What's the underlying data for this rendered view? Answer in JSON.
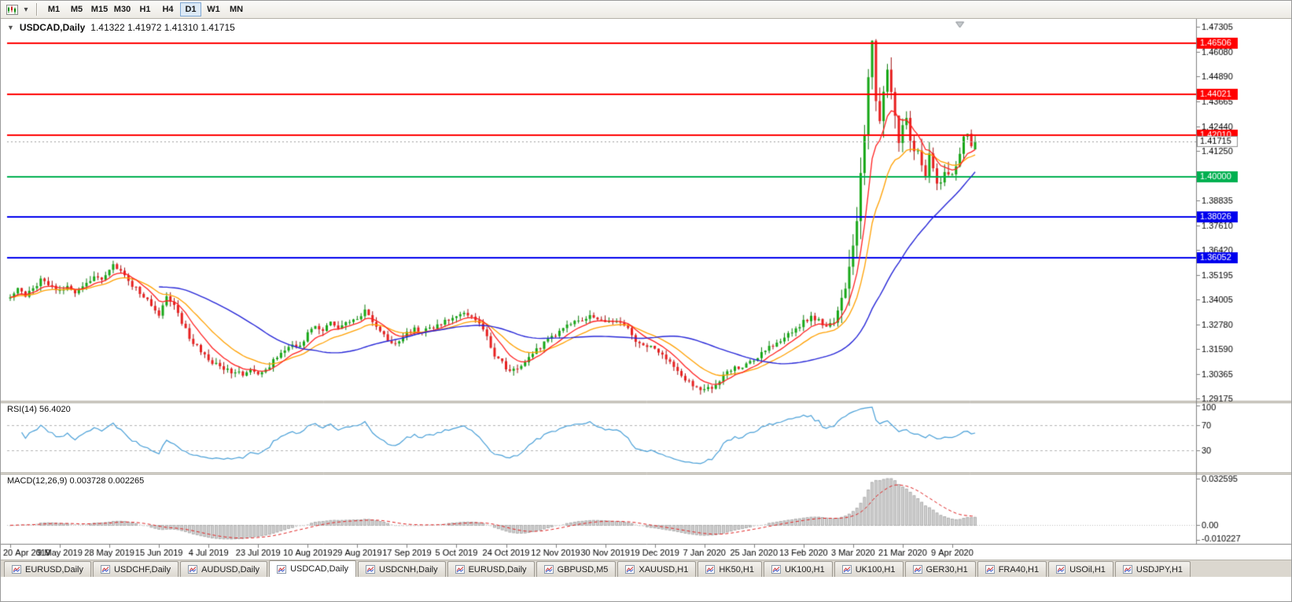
{
  "toolbar": {
    "timeframes": [
      "M1",
      "M5",
      "M15",
      "M30",
      "H1",
      "H4",
      "D1",
      "W1",
      "MN"
    ],
    "active_timeframe": "D1"
  },
  "chart": {
    "collapse_arrow": "▼",
    "title": "USDCAD,Daily",
    "ohlc_text": "1.41322 1.41972 1.41310 1.41715"
  },
  "chart_data": {
    "type": "candlestick",
    "symbol": "USDCAD",
    "period": "Daily",
    "num_candles": 254,
    "last_candle": {
      "open": 1.41322,
      "high": 1.41972,
      "low": 1.4131,
      "close": 1.41715
    },
    "current_price": 1.41715,
    "current_price_label": "1.41715",
    "price_axis": {
      "top": 1.47688,
      "bottom": 1.29059,
      "ticks": [
        1.47305,
        1.4608,
        1.4489,
        1.43665,
        1.4244,
        1.4125,
        1.4006,
        1.38835,
        1.3761,
        1.3642,
        1.35195,
        1.34005,
        1.3278,
        1.3159,
        1.30365,
        1.29175
      ]
    },
    "horizontal_lines": [
      {
        "price": 1.46506,
        "label": "1.46506",
        "color": "#ff0000"
      },
      {
        "price": 1.44021,
        "label": "1.44021",
        "color": "#ff0000"
      },
      {
        "price": 1.4201,
        "label": "1.42010",
        "color": "#ff0000"
      },
      {
        "price": 1.4,
        "label": "1.40000",
        "color": "#00b050"
      },
      {
        "price": 1.38026,
        "label": "1.38026",
        "color": "#0000ee"
      },
      {
        "price": 1.36052,
        "label": "1.36052",
        "color": "#0000ee"
      }
    ],
    "moving_averages": [
      {
        "type": "ema",
        "period": 8,
        "color": "#ff2020"
      },
      {
        "type": "ema",
        "period": 17,
        "color": "#ffa000"
      },
      {
        "type": "sma",
        "period": 40,
        "color": "#2828d8"
      }
    ],
    "candle_colors": {
      "up_fill": "#18a818",
      "up_stroke": "#0c7a0c",
      "down_fill": "#e82020",
      "down_stroke": "#a01010"
    },
    "x_labels": [
      "20 Apr 2019",
      "9 May 2019",
      "28 May 2019",
      "15 Jun 2019",
      "4 Jul 2019",
      "23 Jul 2019",
      "10 Aug 2019",
      "29 Aug 2019",
      "17 Sep 2019",
      "5 Oct 2019",
      "24 Oct 2019",
      "12 Nov 2019",
      "30 Nov 2019",
      "19 Dec 2019",
      "7 Jan 2020",
      "25 Jan 2020",
      "13 Feb 2020",
      "3 Mar 2020",
      "21 Mar 2020",
      "9 Apr 2020"
    ],
    "x_label_indices": [
      0,
      13,
      26,
      39,
      52,
      65,
      78,
      91,
      104,
      117,
      130,
      143,
      156,
      169,
      182,
      195,
      208,
      221,
      234,
      247
    ],
    "close_anchors": [
      [
        0,
        1.3405
      ],
      [
        2,
        1.3448
      ],
      [
        4,
        1.3412
      ],
      [
        6,
        1.3452
      ],
      [
        8,
        1.3498
      ],
      [
        10,
        1.3465
      ],
      [
        13,
        1.3442
      ],
      [
        15,
        1.3468
      ],
      [
        17,
        1.3428
      ],
      [
        19,
        1.3458
      ],
      [
        22,
        1.3512
      ],
      [
        24,
        1.3498
      ],
      [
        26,
        1.3552
      ],
      [
        27,
        1.3568
      ],
      [
        29,
        1.3532
      ],
      [
        31,
        1.3492
      ],
      [
        33,
        1.3452
      ],
      [
        35,
        1.3418
      ],
      [
        37,
        1.3372
      ],
      [
        39,
        1.3332
      ],
      [
        41,
        1.3408
      ],
      [
        43,
        1.3368
      ],
      [
        45,
        1.3292
      ],
      [
        47,
        1.3212
      ],
      [
        49,
        1.3168
      ],
      [
        52,
        1.3112
      ],
      [
        55,
        1.3065
      ],
      [
        58,
        1.3048
      ],
      [
        61,
        1.3035
      ],
      [
        63,
        1.3058
      ],
      [
        65,
        1.3028
      ],
      [
        68,
        1.3078
      ],
      [
        71,
        1.3142
      ],
      [
        74,
        1.3188
      ],
      [
        76,
        1.3165
      ],
      [
        78,
        1.3232
      ],
      [
        80,
        1.3268
      ],
      [
        82,
        1.3245
      ],
      [
        84,
        1.3298
      ],
      [
        86,
        1.3268
      ],
      [
        88,
        1.3285
      ],
      [
        91,
        1.331
      ],
      [
        93,
        1.3342
      ],
      [
        95,
        1.3298
      ],
      [
        97,
        1.3242
      ],
      [
        99,
        1.3202
      ],
      [
        101,
        1.3188
      ],
      [
        104,
        1.3235
      ],
      [
        106,
        1.326
      ],
      [
        108,
        1.3242
      ],
      [
        110,
        1.3256
      ],
      [
        113,
        1.328
      ],
      [
        115,
        1.3302
      ],
      [
        117,
        1.332
      ],
      [
        119,
        1.3335
      ],
      [
        121,
        1.3308
      ],
      [
        123,
        1.3282
      ],
      [
        125,
        1.3215
      ],
      [
        127,
        1.3132
      ],
      [
        130,
        1.3068
      ],
      [
        132,
        1.3054
      ],
      [
        134,
        1.308
      ],
      [
        136,
        1.311
      ],
      [
        138,
        1.3152
      ],
      [
        141,
        1.3202
      ],
      [
        143,
        1.323
      ],
      [
        145,
        1.3255
      ],
      [
        147,
        1.3282
      ],
      [
        150,
        1.3305
      ],
      [
        153,
        1.332
      ],
      [
        156,
        1.33
      ],
      [
        158,
        1.3286
      ],
      [
        160,
        1.3296
      ],
      [
        162,
        1.3265
      ],
      [
        164,
        1.3185
      ],
      [
        166,
        1.3172
      ],
      [
        169,
        1.316
      ],
      [
        171,
        1.3136
      ],
      [
        173,
        1.3092
      ],
      [
        175,
        1.3055
      ],
      [
        177,
        1.3012
      ],
      [
        179,
        1.298
      ],
      [
        182,
        1.2958
      ],
      [
        184,
        1.2972
      ],
      [
        186,
        1.3008
      ],
      [
        188,
        1.305
      ],
      [
        190,
        1.3064
      ],
      [
        193,
        1.3086
      ],
      [
        195,
        1.3106
      ],
      [
        197,
        1.314
      ],
      [
        199,
        1.317
      ],
      [
        201,
        1.3188
      ],
      [
        204,
        1.3226
      ],
      [
        206,
        1.326
      ],
      [
        208,
        1.329
      ],
      [
        210,
        1.3316
      ],
      [
        212,
        1.3302
      ],
      [
        214,
        1.3258
      ],
      [
        216,
        1.3296
      ],
      [
        217,
        1.3338
      ],
      [
        218,
        1.3392
      ],
      [
        219,
        1.3452
      ],
      [
        220,
        1.3528
      ],
      [
        221,
        1.3638
      ],
      [
        222,
        1.3798
      ],
      [
        223,
        1.3998
      ],
      [
        224,
        1.4228
      ],
      [
        225,
        1.4478
      ],
      [
        226,
        1.4652
      ],
      [
        227,
        1.4388
      ],
      [
        228,
        1.4258
      ],
      [
        229,
        1.4415
      ],
      [
        230,
        1.4488
      ],
      [
        231,
        1.4428
      ],
      [
        232,
        1.4288
      ],
      [
        233,
        1.4178
      ],
      [
        234,
        1.4238
      ],
      [
        235,
        1.4308
      ],
      [
        236,
        1.4192
      ],
      [
        237,
        1.4118
      ],
      [
        238,
        1.4152
      ],
      [
        239,
        1.4078
      ],
      [
        240,
        1.4018
      ],
      [
        241,
        1.4092
      ],
      [
        242,
        1.4028
      ],
      [
        243,
        1.3952
      ],
      [
        244,
        1.3985
      ],
      [
        245,
        1.4038
      ],
      [
        246,
        1.3988
      ],
      [
        247,
        1.4022
      ],
      [
        248,
        1.4068
      ],
      [
        249,
        1.4122
      ],
      [
        250,
        1.4178
      ],
      [
        251,
        1.4228
      ],
      [
        252,
        1.4148
      ],
      [
        253,
        1.41715
      ]
    ]
  },
  "rsi": {
    "label": "RSI(14) 56.4020",
    "period": 14,
    "value": 56.402,
    "level_labels": [
      "100",
      "70",
      "30"
    ],
    "levels": [
      100,
      70,
      30
    ],
    "line_color": "#4aa0d8",
    "level_line_color": "#b4b4b4"
  },
  "macd": {
    "label": "MACD(12,26,9) 0.003728 0.002265",
    "fast": 12,
    "slow": 26,
    "signal": 9,
    "value_main": 0.003728,
    "value_signal": 0.002265,
    "axis_labels": [
      "0.032595",
      "0.00",
      "-0.010227"
    ],
    "scale_max": 0.032595,
    "scale_min": -0.010227,
    "histogram_fill": "#cfcfcf",
    "histogram_stroke": "#a0a0a0",
    "signal_color": "#e02020"
  },
  "tabs": {
    "active_index": 3,
    "items": [
      "EURUSD,Daily",
      "USDCHF,Daily",
      "AUDUSD,Daily",
      "USDCAD,Daily",
      "USDCNH,Daily",
      "EURUSD,Daily",
      "GBPUSD,M5",
      "XAUUSD,H1",
      "HK50,H1",
      "UK100,H1",
      "UK100,H1",
      "GER30,H1",
      "FRA40,H1",
      "USOil,H1",
      "USDJPY,H1"
    ]
  }
}
